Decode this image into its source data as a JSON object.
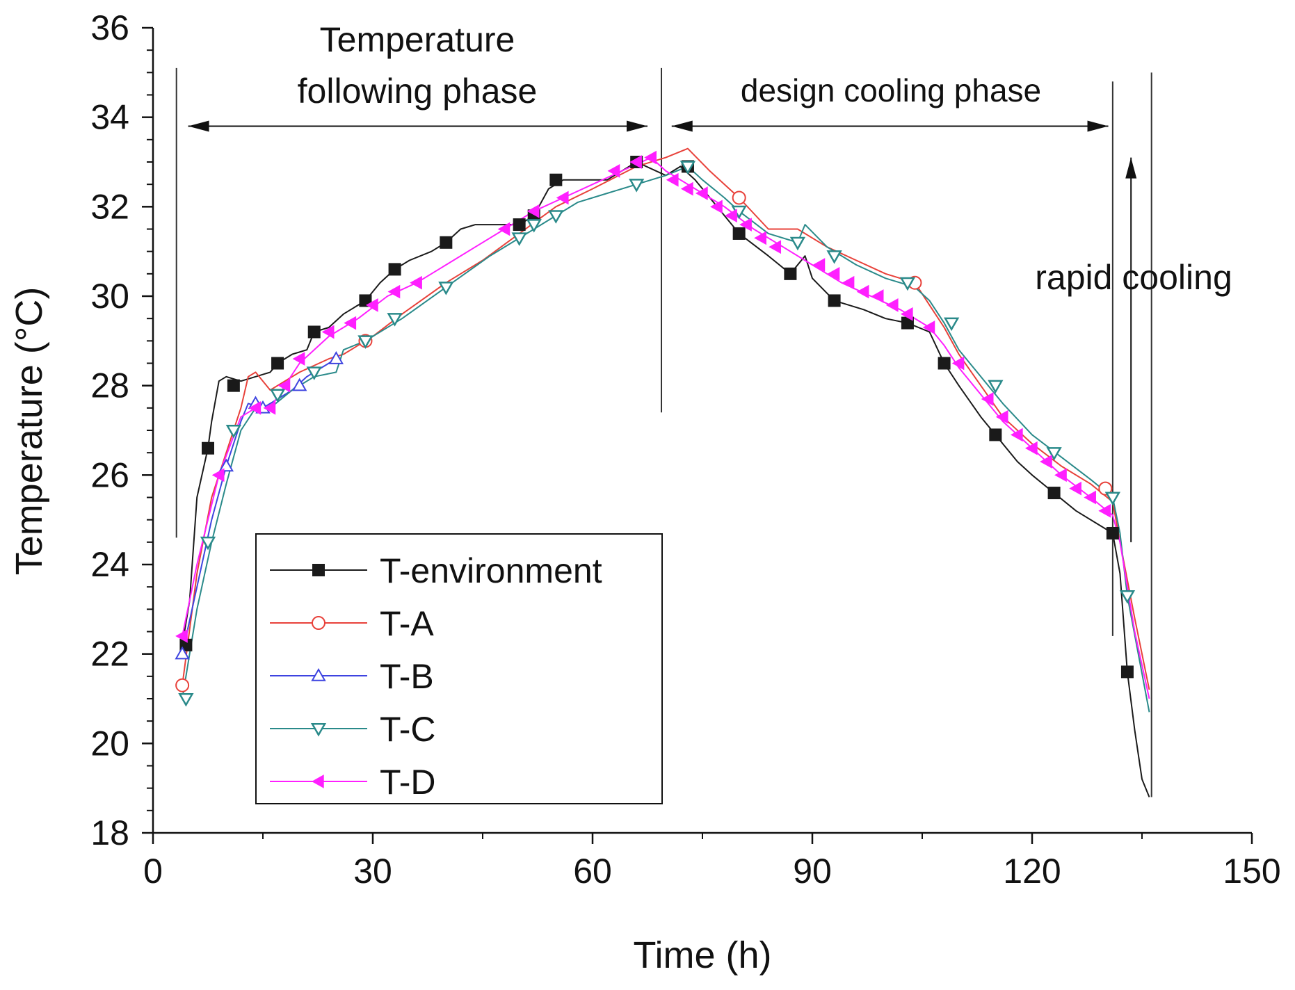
{
  "chart_data": {
    "type": "line",
    "title": "",
    "xlabel": "Time (h)",
    "ylabel": "Temperature (°C)",
    "xlim": [
      0,
      150
    ],
    "ylim": [
      18,
      36
    ],
    "xticks": [
      0,
      30,
      60,
      90,
      120,
      150
    ],
    "yticks": [
      18,
      20,
      22,
      24,
      26,
      28,
      30,
      32,
      34,
      36
    ],
    "grid": false,
    "legend_position": "lower-left",
    "series": [
      {
        "name": "T-environment",
        "color": "#1a1a1a",
        "marker": "square-filled",
        "line": [
          [
            4,
            22.2
          ],
          [
            5,
            23.2
          ],
          [
            6,
            25.5
          ],
          [
            7.5,
            26.6
          ],
          [
            8,
            27.2
          ],
          [
            9,
            28.1
          ],
          [
            10,
            28.2
          ],
          [
            12,
            28.1
          ],
          [
            14,
            28.2
          ],
          [
            16,
            28.3
          ],
          [
            17,
            28.5
          ],
          [
            19,
            28.7
          ],
          [
            21,
            28.8
          ],
          [
            22,
            29.2
          ],
          [
            24,
            29.3
          ],
          [
            26,
            29.6
          ],
          [
            28,
            29.8
          ],
          [
            29,
            29.9
          ],
          [
            31,
            30.3
          ],
          [
            33,
            30.6
          ],
          [
            35,
            30.8
          ],
          [
            38,
            31.0
          ],
          [
            40,
            31.2
          ],
          [
            42,
            31.5
          ],
          [
            44,
            31.6
          ],
          [
            46,
            31.6
          ],
          [
            48,
            31.6
          ],
          [
            50,
            31.6
          ],
          [
            52,
            31.8
          ],
          [
            54,
            32.4
          ],
          [
            56,
            32.6
          ],
          [
            58,
            32.6
          ],
          [
            62,
            32.6
          ],
          [
            66,
            33.0
          ],
          [
            70,
            32.7
          ],
          [
            72,
            32.9
          ],
          [
            74,
            32.6
          ],
          [
            77,
            32.0
          ],
          [
            80,
            31.4
          ],
          [
            84,
            30.9
          ],
          [
            87,
            30.5
          ],
          [
            89,
            30.9
          ],
          [
            90,
            30.4
          ],
          [
            93,
            29.9
          ],
          [
            97,
            29.7
          ],
          [
            100,
            29.5
          ],
          [
            103,
            29.4
          ],
          [
            106,
            29.2
          ],
          [
            108,
            28.5
          ],
          [
            110,
            28.0
          ],
          [
            113,
            27.3
          ],
          [
            115,
            26.9
          ],
          [
            118,
            26.3
          ],
          [
            120,
            26.0
          ],
          [
            123,
            25.6
          ],
          [
            126,
            25.2
          ],
          [
            129,
            24.9
          ],
          [
            131,
            24.7
          ],
          [
            132,
            23.8
          ],
          [
            133,
            21.6
          ],
          [
            134,
            20.3
          ],
          [
            135,
            19.2
          ],
          [
            136,
            18.8
          ]
        ],
        "markers": [
          [
            4.5,
            22.2
          ],
          [
            7.5,
            26.6
          ],
          [
            11,
            28.0
          ],
          [
            17,
            28.5
          ],
          [
            22,
            29.2
          ],
          [
            29,
            29.9
          ],
          [
            33,
            30.6
          ],
          [
            40,
            31.2
          ],
          [
            50,
            31.6
          ],
          [
            52,
            31.8
          ],
          [
            55,
            32.6
          ],
          [
            66,
            33.0
          ],
          [
            73,
            32.9
          ],
          [
            80,
            31.4
          ],
          [
            87,
            30.5
          ],
          [
            93,
            29.9
          ],
          [
            103,
            29.4
          ],
          [
            108,
            28.5
          ],
          [
            115,
            26.9
          ],
          [
            123,
            25.6
          ],
          [
            131,
            24.7
          ],
          [
            133,
            21.6
          ]
        ]
      },
      {
        "name": "T-A",
        "color": "#e8413a",
        "marker": "circle-open",
        "line": [
          [
            4,
            21.3
          ],
          [
            6,
            23.8
          ],
          [
            8,
            25.5
          ],
          [
            10,
            26.5
          ],
          [
            12,
            27.5
          ],
          [
            13,
            28.2
          ],
          [
            14,
            28.3
          ],
          [
            16,
            27.9
          ],
          [
            18,
            28.1
          ],
          [
            20,
            28.3
          ],
          [
            24,
            28.6
          ],
          [
            26,
            28.7
          ],
          [
            28,
            28.9
          ],
          [
            30,
            29.1
          ],
          [
            34,
            29.6
          ],
          [
            40,
            30.3
          ],
          [
            45,
            30.8
          ],
          [
            50,
            31.4
          ],
          [
            55,
            32.0
          ],
          [
            60,
            32.4
          ],
          [
            66,
            32.9
          ],
          [
            70,
            33.1
          ],
          [
            73,
            33.3
          ],
          [
            76,
            32.8
          ],
          [
            80,
            32.2
          ],
          [
            84,
            31.5
          ],
          [
            88,
            31.5
          ],
          [
            92,
            31.1
          ],
          [
            96,
            30.8
          ],
          [
            100,
            30.5
          ],
          [
            104,
            30.3
          ],
          [
            106,
            29.8
          ],
          [
            108,
            29.3
          ],
          [
            110,
            28.7
          ],
          [
            113,
            28.0
          ],
          [
            116,
            27.3
          ],
          [
            120,
            26.7
          ],
          [
            124,
            26.2
          ],
          [
            128,
            25.8
          ],
          [
            131,
            25.4
          ],
          [
            132,
            24.5
          ],
          [
            134,
            22.8
          ],
          [
            136,
            21.2
          ]
        ],
        "markers": [
          [
            4,
            21.3
          ],
          [
            29,
            29.0
          ],
          [
            80,
            32.2
          ],
          [
            104,
            30.3
          ],
          [
            130,
            25.7
          ]
        ]
      },
      {
        "name": "T-B",
        "color": "#3e44e0",
        "marker": "triangle-up-open",
        "line": [
          [
            4,
            22.0
          ],
          [
            6,
            23.5
          ],
          [
            8,
            25.0
          ],
          [
            10,
            26.2
          ],
          [
            12,
            27.2
          ],
          [
            13,
            27.6
          ],
          [
            15,
            27.5
          ],
          [
            17,
            27.7
          ],
          [
            19,
            27.9
          ],
          [
            21,
            28.2
          ],
          [
            23,
            28.4
          ],
          [
            25,
            28.6
          ]
        ],
        "markers": [
          [
            4,
            22.0
          ],
          [
            10,
            26.2
          ],
          [
            14,
            27.6
          ],
          [
            15,
            27.5
          ],
          [
            20,
            28.0
          ],
          [
            25,
            28.6
          ]
        ]
      },
      {
        "name": "T-C",
        "color": "#2a8a8a",
        "marker": "triangle-down-open",
        "line": [
          [
            4,
            21.0
          ],
          [
            6,
            23.0
          ],
          [
            8,
            24.5
          ],
          [
            10,
            25.8
          ],
          [
            12,
            27.0
          ],
          [
            14,
            27.5
          ],
          [
            16,
            27.5
          ],
          [
            19,
            27.9
          ],
          [
            22,
            28.2
          ],
          [
            25,
            28.3
          ],
          [
            26,
            28.8
          ],
          [
            29,
            29.0
          ],
          [
            34,
            29.5
          ],
          [
            40,
            30.2
          ],
          [
            46,
            30.9
          ],
          [
            50,
            31.3
          ],
          [
            54,
            31.7
          ],
          [
            58,
            32.1
          ],
          [
            62,
            32.3
          ],
          [
            66,
            32.5
          ],
          [
            70,
            32.7
          ],
          [
            73,
            32.9
          ],
          [
            75,
            32.6
          ],
          [
            78,
            32.2
          ],
          [
            80,
            31.9
          ],
          [
            84,
            31.4
          ],
          [
            88,
            31.2
          ],
          [
            89,
            31.6
          ],
          [
            92,
            31.1
          ],
          [
            96,
            30.7
          ],
          [
            100,
            30.4
          ],
          [
            104,
            30.2
          ],
          [
            106,
            29.9
          ],
          [
            108,
            29.4
          ],
          [
            110,
            28.8
          ],
          [
            113,
            28.2
          ],
          [
            116,
            27.6
          ],
          [
            120,
            26.9
          ],
          [
            124,
            26.4
          ],
          [
            128,
            25.9
          ],
          [
            131,
            25.5
          ],
          [
            132,
            24.7
          ],
          [
            133,
            23.3
          ],
          [
            136,
            20.7
          ]
        ],
        "markers": [
          [
            4.5,
            21.0
          ],
          [
            7.5,
            24.5
          ],
          [
            11,
            27.0
          ],
          [
            17,
            27.8
          ],
          [
            22,
            28.3
          ],
          [
            29,
            29.0
          ],
          [
            33,
            29.5
          ],
          [
            40,
            30.2
          ],
          [
            50,
            31.3
          ],
          [
            52,
            31.6
          ],
          [
            55,
            31.8
          ],
          [
            66,
            32.5
          ],
          [
            73,
            32.9
          ],
          [
            80,
            31.9
          ],
          [
            88,
            31.2
          ],
          [
            93,
            30.9
          ],
          [
            103,
            30.3
          ],
          [
            109,
            29.4
          ],
          [
            115,
            28.0
          ],
          [
            123,
            26.5
          ],
          [
            131,
            25.5
          ],
          [
            133,
            23.3
          ]
        ]
      },
      {
        "name": "T-D",
        "color": "#ff1fff",
        "marker": "triangle-left-filled",
        "line": [
          [
            4,
            22.4
          ],
          [
            6,
            24.0
          ],
          [
            9,
            26.0
          ],
          [
            12,
            27.3
          ],
          [
            14,
            27.5
          ],
          [
            16,
            27.5
          ],
          [
            18,
            28.0
          ],
          [
            20,
            28.5
          ],
          [
            24,
            29.1
          ],
          [
            28,
            29.5
          ],
          [
            32,
            30.0
          ],
          [
            36,
            30.3
          ],
          [
            40,
            30.7
          ],
          [
            44,
            31.1
          ],
          [
            48,
            31.5
          ],
          [
            52,
            31.9
          ],
          [
            56,
            32.2
          ],
          [
            60,
            32.5
          ],
          [
            64,
            32.8
          ],
          [
            68,
            33.1
          ],
          [
            70,
            32.8
          ],
          [
            74,
            32.4
          ],
          [
            78,
            32.0
          ],
          [
            82,
            31.5
          ],
          [
            86,
            31.1
          ],
          [
            90,
            30.7
          ],
          [
            94,
            30.3
          ],
          [
            98,
            30.0
          ],
          [
            102,
            29.7
          ],
          [
            106,
            29.3
          ],
          [
            108,
            28.9
          ],
          [
            110,
            28.4
          ],
          [
            113,
            27.8
          ],
          [
            116,
            27.2
          ],
          [
            120,
            26.6
          ],
          [
            124,
            26.0
          ],
          [
            128,
            25.5
          ],
          [
            131,
            25.1
          ],
          [
            132,
            24.5
          ],
          [
            134,
            22.5
          ],
          [
            136,
            21.0
          ]
        ],
        "markers": [
          [
            4,
            22.4
          ],
          [
            9,
            26.0
          ],
          [
            14,
            27.5
          ],
          [
            16,
            27.5
          ],
          [
            18,
            28.0
          ],
          [
            20,
            28.6
          ],
          [
            24,
            29.2
          ],
          [
            27,
            29.4
          ],
          [
            30,
            29.8
          ],
          [
            33,
            30.1
          ],
          [
            36,
            30.3
          ],
          [
            48,
            31.5
          ],
          [
            52,
            31.9
          ],
          [
            56,
            32.2
          ],
          [
            63,
            32.8
          ],
          [
            66,
            33.0
          ],
          [
            68,
            33.1
          ],
          [
            71,
            32.6
          ],
          [
            73,
            32.4
          ],
          [
            75,
            32.3
          ],
          [
            77,
            32.0
          ],
          [
            79,
            31.8
          ],
          [
            81,
            31.6
          ],
          [
            83,
            31.3
          ],
          [
            85,
            31.1
          ],
          [
            91,
            30.7
          ],
          [
            93,
            30.5
          ],
          [
            95,
            30.3
          ],
          [
            97,
            30.1
          ],
          [
            99,
            30.0
          ],
          [
            101,
            29.8
          ],
          [
            103,
            29.6
          ],
          [
            106,
            29.3
          ],
          [
            110,
            28.5
          ],
          [
            114,
            27.7
          ],
          [
            116,
            27.3
          ],
          [
            118,
            26.9
          ],
          [
            120,
            26.6
          ],
          [
            122,
            26.3
          ],
          [
            124,
            26.0
          ],
          [
            126,
            25.7
          ],
          [
            128,
            25.5
          ],
          [
            130,
            25.2
          ]
        ]
      }
    ],
    "annotations": [
      {
        "lines": [
          "Temperature",
          "following phase"
        ]
      },
      {
        "lines": [
          "design cooling phase"
        ]
      },
      {
        "lines": [
          "rapid cooling"
        ]
      }
    ]
  }
}
